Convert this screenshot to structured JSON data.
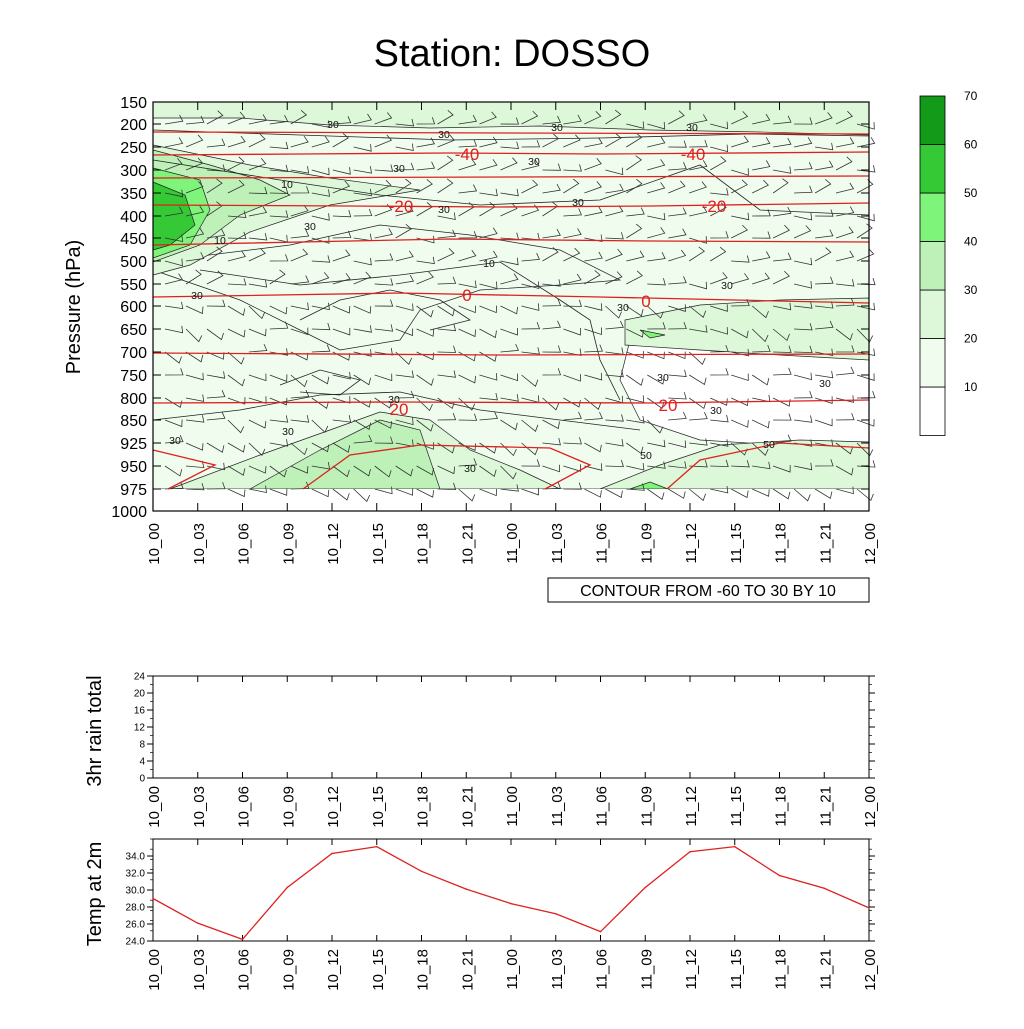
{
  "title": "Station: DOSSO",
  "chart_data": [
    {
      "type": "heatmap",
      "name": "pressure-time cross section",
      "ylabel": "Pressure (hPa)",
      "yticks": [
        "150",
        "200",
        "250",
        "300",
        "350",
        "400",
        "450",
        "500",
        "550",
        "600",
        "650",
        "700",
        "750",
        "800",
        "850",
        "925",
        "950",
        "975",
        "1000"
      ],
      "xticks": [
        "10_00",
        "10_03",
        "10_06",
        "10_09",
        "10_12",
        "10_15",
        "10_18",
        "10_21",
        "11_00",
        "11_03",
        "11_06",
        "11_09",
        "11_12",
        "11_15",
        "11_18",
        "11_21",
        "12_00"
      ],
      "colorbar_labels": [
        "10",
        "20",
        "30",
        "40",
        "50",
        "60",
        "70"
      ],
      "colorbar_colors": [
        "#ffffff",
        "#f0fcee",
        "#dcf8d8",
        "#bdf1b8",
        "#7ef47a",
        "#35c935",
        "#129a18"
      ],
      "red_contour_labels": [
        "-40",
        "-40",
        "-20",
        "-20",
        "0",
        "0",
        "20",
        "20"
      ],
      "black_contour_labels": [
        "30",
        "30",
        "30",
        "30",
        "30",
        "30",
        "30",
        "30",
        "30",
        "30",
        "30",
        "30",
        "30",
        "30",
        "30",
        "30",
        "30",
        "30",
        "30",
        "50",
        "50",
        "10",
        "10",
        "10"
      ],
      "info_label": "CONTOUR FROM -60 TO 30 BY 10"
    },
    {
      "type": "line",
      "name": "3hr rain total",
      "ylabel": "3hr rain total",
      "ylim": [
        0,
        24
      ],
      "yticks": [
        "0",
        "4",
        "8",
        "12",
        "16",
        "20",
        "24"
      ],
      "xticks": [
        "10_00",
        "10_03",
        "10_06",
        "10_09",
        "10_12",
        "10_15",
        "10_18",
        "10_21",
        "11_00",
        "11_03",
        "11_06",
        "11_09",
        "11_12",
        "11_15",
        "11_18",
        "11_21",
        "12_00"
      ],
      "values": []
    },
    {
      "type": "line",
      "name": "Temp at 2m",
      "ylabel": "Temp at 2m",
      "ylim": [
        24,
        36
      ],
      "yticks": [
        "24.0",
        "26.0",
        "28.0",
        "30.0",
        "32.0",
        "34.0"
      ],
      "xticks": [
        "10_00",
        "10_03",
        "10_06",
        "10_09",
        "10_12",
        "10_15",
        "10_18",
        "10_21",
        "11_00",
        "11_03",
        "11_06",
        "11_09",
        "11_12",
        "11_15",
        "11_18",
        "11_21",
        "12_00"
      ],
      "values": [
        29.0,
        26.1,
        24.2,
        30.3,
        34.3,
        35.1,
        32.2,
        30.1,
        28.4,
        27.2,
        25.1,
        30.3,
        34.5,
        35.1,
        31.7,
        30.2,
        27.9
      ],
      "line_color": "#e02020"
    }
  ]
}
